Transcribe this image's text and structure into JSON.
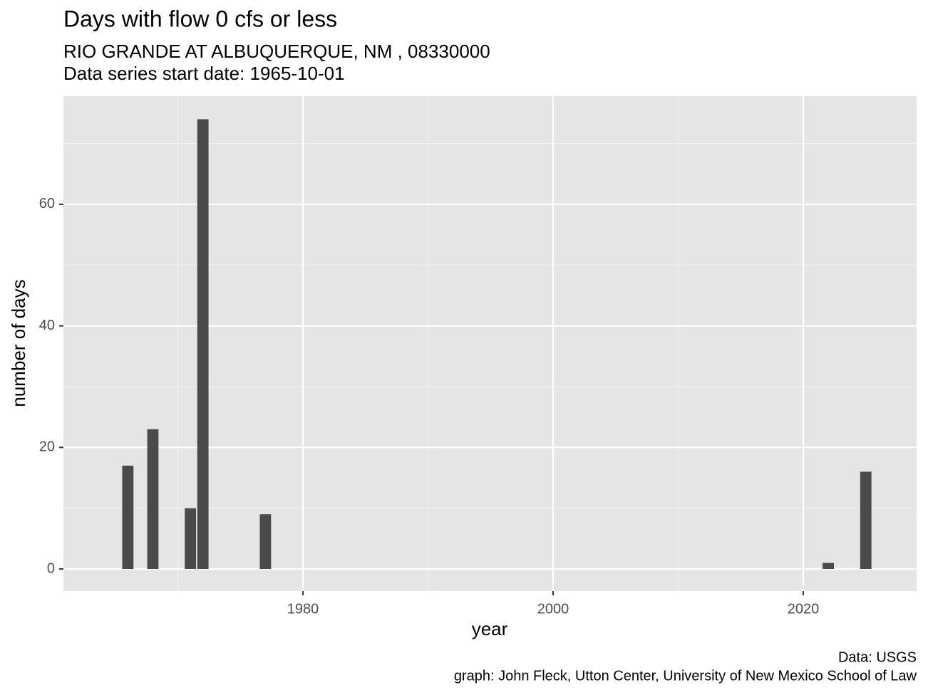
{
  "chart_data": {
    "type": "bar",
    "title": "Days with flow 0 cfs or less",
    "subtitle": [
      "RIO GRANDE AT ALBUQUERQUE, NM ,  08330000",
      "Data series start date:  1965-10-01"
    ],
    "x_label": "year",
    "y_label": "number of days",
    "caption": [
      "Data: USGS",
      "graph: John Fleck, Utton Center, University of New Mexico School of Law"
    ],
    "x": [
      1966,
      1968,
      1971,
      1972,
      1977,
      2022,
      2025
    ],
    "values": [
      17,
      23,
      10,
      74,
      9,
      1,
      16
    ],
    "color": "#4a4a4a",
    "xlim": [
      1960.85,
      2029.06
    ],
    "xticks": [
      1980,
      2000,
      2020
    ],
    "ylim": [
      -3.63,
      77.8
    ],
    "yticks": [
      0,
      20,
      40,
      60
    ],
    "grid": true,
    "minor_grid": true
  }
}
